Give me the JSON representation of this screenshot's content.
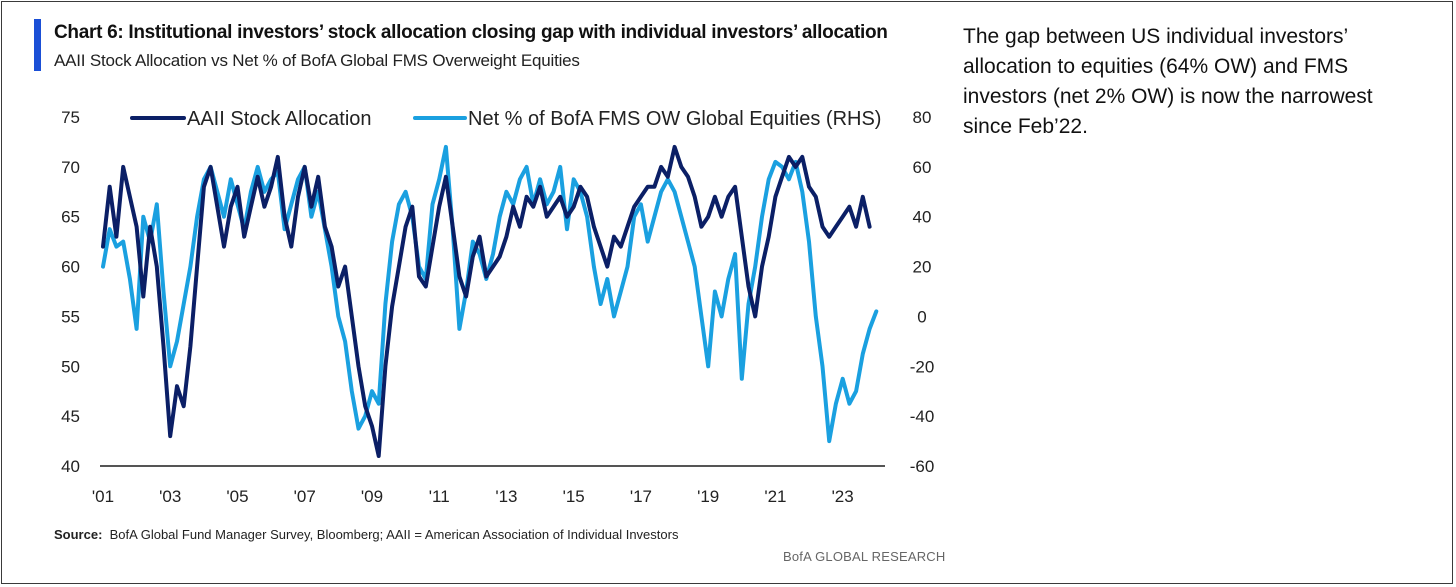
{
  "colors": {
    "accent": "#1a4fd6",
    "series_dark": "#0b1f66",
    "series_light": "#1aa0e0",
    "axis": "#555555"
  },
  "title": "Chart 6: Institutional investors’ stock allocation closing gap with individual investors’ allocation",
  "subtitle": "AAII Stock Allocation vs Net % of BofA Global FMS Overweight Equities",
  "source_label": "Source:",
  "source_text": "BofA Global Fund Manager Survey, Bloomberg; AAII = American Association of Individual Investors",
  "footer_brand": "BofA GLOBAL RESEARCH",
  "commentary": "The gap between US individual investors’ allocation to equities (64% OW) and FMS investors (net 2% OW) is now the narrowest since Feb’22.",
  "chart_data": {
    "type": "line",
    "x_start": "2001-01",
    "x_end": "2024-01",
    "x_ticks": [
      {
        "year": 2001,
        "label": "'01"
      },
      {
        "year": 2003,
        "label": "'03"
      },
      {
        "year": 2005,
        "label": "'05"
      },
      {
        "year": 2007,
        "label": "'07"
      },
      {
        "year": 2009,
        "label": "'09"
      },
      {
        "year": 2011,
        "label": "'11"
      },
      {
        "year": 2013,
        "label": "'13"
      },
      {
        "year": 2015,
        "label": "'15"
      },
      {
        "year": 2017,
        "label": "'17"
      },
      {
        "year": 2019,
        "label": "'19"
      },
      {
        "year": 2021,
        "label": "'21"
      },
      {
        "year": 2023,
        "label": "'23"
      }
    ],
    "y_left": {
      "min": 40,
      "max": 75,
      "ticks": [
        40,
        45,
        50,
        55,
        60,
        65,
        70,
        75
      ]
    },
    "y_right": {
      "min": -60,
      "max": 80,
      "ticks": [
        -60,
        -40,
        -20,
        0,
        20,
        40,
        60,
        80
      ]
    },
    "legend_position": "top",
    "grid": false,
    "series": [
      {
        "name": "AAII Stock Allocation",
        "axis": "left",
        "points": [
          [
            2001.0,
            62
          ],
          [
            2001.2,
            68
          ],
          [
            2001.4,
            63
          ],
          [
            2001.6,
            70
          ],
          [
            2001.8,
            67
          ],
          [
            2002.0,
            64
          ],
          [
            2002.2,
            57
          ],
          [
            2002.4,
            64
          ],
          [
            2002.6,
            60
          ],
          [
            2002.8,
            52
          ],
          [
            2003.0,
            43
          ],
          [
            2003.2,
            48
          ],
          [
            2003.4,
            46
          ],
          [
            2003.6,
            52
          ],
          [
            2003.8,
            60
          ],
          [
            2004.0,
            68
          ],
          [
            2004.2,
            70
          ],
          [
            2004.4,
            66
          ],
          [
            2004.6,
            62
          ],
          [
            2004.8,
            66
          ],
          [
            2005.0,
            68
          ],
          [
            2005.2,
            63
          ],
          [
            2005.4,
            66
          ],
          [
            2005.6,
            69
          ],
          [
            2005.8,
            66
          ],
          [
            2006.0,
            68
          ],
          [
            2006.2,
            71
          ],
          [
            2006.4,
            65
          ],
          [
            2006.6,
            62
          ],
          [
            2006.8,
            67
          ],
          [
            2007.0,
            70
          ],
          [
            2007.2,
            66
          ],
          [
            2007.4,
            69
          ],
          [
            2007.6,
            64
          ],
          [
            2007.8,
            62
          ],
          [
            2008.0,
            58
          ],
          [
            2008.2,
            60
          ],
          [
            2008.4,
            55
          ],
          [
            2008.6,
            50
          ],
          [
            2008.8,
            46
          ],
          [
            2009.0,
            44
          ],
          [
            2009.2,
            41
          ],
          [
            2009.4,
            50
          ],
          [
            2009.6,
            56
          ],
          [
            2009.8,
            60
          ],
          [
            2010.0,
            64
          ],
          [
            2010.2,
            66
          ],
          [
            2010.4,
            59
          ],
          [
            2010.6,
            58
          ],
          [
            2010.8,
            62
          ],
          [
            2011.0,
            66
          ],
          [
            2011.2,
            69
          ],
          [
            2011.4,
            64
          ],
          [
            2011.6,
            59
          ],
          [
            2011.8,
            57
          ],
          [
            2012.0,
            61
          ],
          [
            2012.2,
            63
          ],
          [
            2012.4,
            59
          ],
          [
            2012.6,
            60
          ],
          [
            2012.8,
            61
          ],
          [
            2013.0,
            63
          ],
          [
            2013.2,
            66
          ],
          [
            2013.4,
            64
          ],
          [
            2013.6,
            67
          ],
          [
            2013.8,
            66
          ],
          [
            2014.0,
            68
          ],
          [
            2014.2,
            65
          ],
          [
            2014.4,
            66
          ],
          [
            2014.6,
            67
          ],
          [
            2014.8,
            65
          ],
          [
            2015.0,
            66
          ],
          [
            2015.2,
            68
          ],
          [
            2015.4,
            67
          ],
          [
            2015.6,
            64
          ],
          [
            2015.8,
            62
          ],
          [
            2016.0,
            60
          ],
          [
            2016.2,
            63
          ],
          [
            2016.4,
            62
          ],
          [
            2016.6,
            64
          ],
          [
            2016.8,
            66
          ],
          [
            2017.0,
            67
          ],
          [
            2017.2,
            68
          ],
          [
            2017.4,
            68
          ],
          [
            2017.6,
            70
          ],
          [
            2017.8,
            69
          ],
          [
            2018.0,
            72
          ],
          [
            2018.2,
            70
          ],
          [
            2018.4,
            69
          ],
          [
            2018.6,
            67
          ],
          [
            2018.8,
            64
          ],
          [
            2019.0,
            65
          ],
          [
            2019.2,
            67
          ],
          [
            2019.4,
            65
          ],
          [
            2019.6,
            67
          ],
          [
            2019.8,
            68
          ],
          [
            2020.0,
            63
          ],
          [
            2020.2,
            58
          ],
          [
            2020.4,
            55
          ],
          [
            2020.6,
            60
          ],
          [
            2020.8,
            63
          ],
          [
            2021.0,
            67
          ],
          [
            2021.2,
            69
          ],
          [
            2021.4,
            71
          ],
          [
            2021.6,
            70
          ],
          [
            2021.8,
            71
          ],
          [
            2022.0,
            68
          ],
          [
            2022.2,
            67
          ],
          [
            2022.4,
            64
          ],
          [
            2022.6,
            63
          ],
          [
            2022.8,
            64
          ],
          [
            2023.0,
            65
          ],
          [
            2023.2,
            66
          ],
          [
            2023.4,
            64
          ],
          [
            2023.6,
            67
          ],
          [
            2023.8,
            64
          ]
        ]
      },
      {
        "name": "Net % of BofA FMS OW Global Equities (RHS)",
        "axis": "right",
        "points": [
          [
            2001.0,
            20
          ],
          [
            2001.2,
            35
          ],
          [
            2001.4,
            28
          ],
          [
            2001.6,
            30
          ],
          [
            2001.8,
            15
          ],
          [
            2002.0,
            -5
          ],
          [
            2002.2,
            40
          ],
          [
            2002.4,
            30
          ],
          [
            2002.6,
            45
          ],
          [
            2002.8,
            10
          ],
          [
            2003.0,
            -20
          ],
          [
            2003.2,
            -10
          ],
          [
            2003.4,
            5
          ],
          [
            2003.6,
            20
          ],
          [
            2003.8,
            40
          ],
          [
            2004.0,
            55
          ],
          [
            2004.2,
            60
          ],
          [
            2004.4,
            50
          ],
          [
            2004.6,
            40
          ],
          [
            2004.8,
            55
          ],
          [
            2005.0,
            45
          ],
          [
            2005.2,
            35
          ],
          [
            2005.4,
            50
          ],
          [
            2005.6,
            60
          ],
          [
            2005.8,
            50
          ],
          [
            2006.0,
            55
          ],
          [
            2006.2,
            58
          ],
          [
            2006.4,
            35
          ],
          [
            2006.6,
            45
          ],
          [
            2006.8,
            55
          ],
          [
            2007.0,
            60
          ],
          [
            2007.2,
            40
          ],
          [
            2007.4,
            50
          ],
          [
            2007.6,
            35
          ],
          [
            2007.8,
            20
          ],
          [
            2008.0,
            0
          ],
          [
            2008.2,
            -10
          ],
          [
            2008.4,
            -30
          ],
          [
            2008.6,
            -45
          ],
          [
            2008.8,
            -40
          ],
          [
            2009.0,
            -30
          ],
          [
            2009.2,
            -35
          ],
          [
            2009.4,
            5
          ],
          [
            2009.6,
            30
          ],
          [
            2009.8,
            45
          ],
          [
            2010.0,
            50
          ],
          [
            2010.2,
            40
          ],
          [
            2010.4,
            20
          ],
          [
            2010.6,
            15
          ],
          [
            2010.8,
            45
          ],
          [
            2011.0,
            55
          ],
          [
            2011.2,
            68
          ],
          [
            2011.4,
            35
          ],
          [
            2011.6,
            -5
          ],
          [
            2011.8,
            10
          ],
          [
            2012.0,
            30
          ],
          [
            2012.2,
            25
          ],
          [
            2012.4,
            15
          ],
          [
            2012.6,
            25
          ],
          [
            2012.8,
            40
          ],
          [
            2013.0,
            50
          ],
          [
            2013.2,
            45
          ],
          [
            2013.4,
            55
          ],
          [
            2013.6,
            60
          ],
          [
            2013.8,
            45
          ],
          [
            2014.0,
            55
          ],
          [
            2014.2,
            45
          ],
          [
            2014.4,
            50
          ],
          [
            2014.6,
            60
          ],
          [
            2014.8,
            35
          ],
          [
            2015.0,
            55
          ],
          [
            2015.2,
            50
          ],
          [
            2015.4,
            40
          ],
          [
            2015.6,
            20
          ],
          [
            2015.8,
            5
          ],
          [
            2016.0,
            15
          ],
          [
            2016.2,
            0
          ],
          [
            2016.4,
            10
          ],
          [
            2016.6,
            20
          ],
          [
            2016.8,
            40
          ],
          [
            2017.0,
            45
          ],
          [
            2017.2,
            30
          ],
          [
            2017.4,
            40
          ],
          [
            2017.6,
            50
          ],
          [
            2017.8,
            55
          ],
          [
            2018.0,
            50
          ],
          [
            2018.2,
            40
          ],
          [
            2018.4,
            30
          ],
          [
            2018.6,
            20
          ],
          [
            2018.8,
            0
          ],
          [
            2019.0,
            -20
          ],
          [
            2019.2,
            10
          ],
          [
            2019.4,
            0
          ],
          [
            2019.6,
            15
          ],
          [
            2019.8,
            25
          ],
          [
            2020.0,
            -25
          ],
          [
            2020.2,
            5
          ],
          [
            2020.4,
            20
          ],
          [
            2020.6,
            40
          ],
          [
            2020.8,
            55
          ],
          [
            2021.0,
            62
          ],
          [
            2021.2,
            60
          ],
          [
            2021.4,
            55
          ],
          [
            2021.6,
            62
          ],
          [
            2021.8,
            50
          ],
          [
            2022.0,
            30
          ],
          [
            2022.2,
            0
          ],
          [
            2022.4,
            -20
          ],
          [
            2022.6,
            -50
          ],
          [
            2022.8,
            -35
          ],
          [
            2023.0,
            -25
          ],
          [
            2023.2,
            -35
          ],
          [
            2023.4,
            -30
          ],
          [
            2023.6,
            -15
          ],
          [
            2023.8,
            -5
          ],
          [
            2024.0,
            2
          ]
        ]
      }
    ]
  }
}
